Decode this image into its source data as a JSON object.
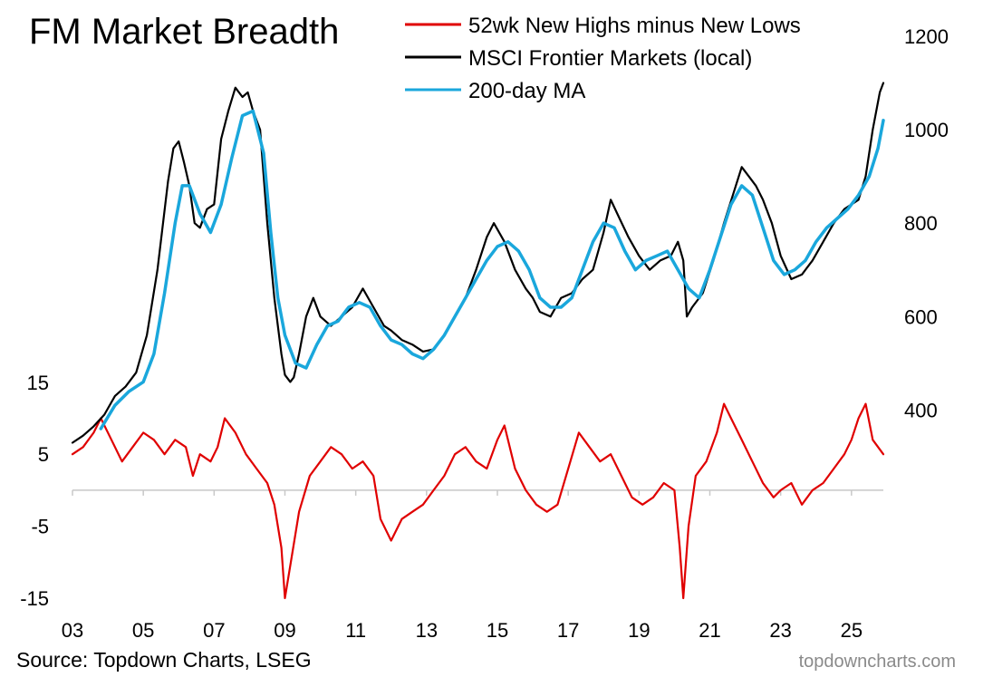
{
  "chart_data": {
    "type": "line",
    "title": "FM Market Breadth",
    "source": "Source: Topdown Charts, LSEG",
    "watermark": "topdowncharts.com",
    "x_tick_labels": [
      "03",
      "05",
      "07",
      "09",
      "11",
      "13",
      "15",
      "17",
      "19",
      "21",
      "23",
      "25"
    ],
    "x_range": [
      2003.0,
      2025.9
    ],
    "right_axis": {
      "ticks": [
        400,
        600,
        800,
        1000,
        1200
      ],
      "tick_labels": [
        "400",
        "600",
        "800",
        "1000",
        "1200"
      ],
      "range": [
        230,
        1200
      ]
    },
    "left_axis": {
      "ticks": [
        15,
        5,
        -5,
        -15
      ],
      "tick_labels": [
        "15",
        "5",
        "-5",
        "-15"
      ],
      "range": [
        -15,
        18
      ],
      "zero_line": 0
    },
    "legend": [
      {
        "label": "52wk New Highs minus New Lows",
        "color": "#e00000"
      },
      {
        "label": "MSCI Frontier Markets (local)",
        "color": "#000000"
      },
      {
        "label": "200-day MA",
        "color": "#1aa7dc"
      }
    ],
    "series": [
      {
        "name": "MSCI Frontier Markets (local)",
        "axis": "right",
        "color": "#000000",
        "x": [
          2003.0,
          2003.3,
          2003.6,
          2003.9,
          2004.2,
          2004.5,
          2004.8,
          2005.1,
          2005.4,
          2005.7,
          2005.85,
          2006.0,
          2006.15,
          2006.3,
          2006.45,
          2006.6,
          2006.8,
          2007.0,
          2007.2,
          2007.4,
          2007.6,
          2007.8,
          2007.95,
          2008.1,
          2008.3,
          2008.5,
          2008.7,
          2008.9,
          2009.0,
          2009.15,
          2009.25,
          2009.4,
          2009.6,
          2009.8,
          2010.0,
          2010.3,
          2010.6,
          2010.9,
          2011.2,
          2011.5,
          2011.8,
          2012.0,
          2012.3,
          2012.6,
          2012.9,
          2013.2,
          2013.5,
          2013.8,
          2014.1,
          2014.4,
          2014.7,
          2014.9,
          2015.2,
          2015.5,
          2015.8,
          2016.0,
          2016.2,
          2016.5,
          2016.8,
          2017.1,
          2017.4,
          2017.7,
          2018.0,
          2018.2,
          2018.45,
          2018.7,
          2019.0,
          2019.3,
          2019.6,
          2019.9,
          2020.1,
          2020.25,
          2020.35,
          2020.5,
          2020.8,
          2021.1,
          2021.4,
          2021.65,
          2021.9,
          2022.1,
          2022.3,
          2022.5,
          2022.75,
          2023.0,
          2023.3,
          2023.6,
          2023.9,
          2024.2,
          2024.5,
          2024.8,
          2025.0,
          2025.2,
          2025.4,
          2025.6,
          2025.8,
          2025.9
        ],
        "values": [
          330,
          345,
          365,
          390,
          430,
          450,
          480,
          560,
          700,
          890,
          960,
          975,
          930,
          880,
          800,
          790,
          830,
          840,
          980,
          1040,
          1090,
          1070,
          1080,
          1040,
          1000,
          800,
          640,
          520,
          475,
          460,
          470,
          520,
          600,
          640,
          600,
          580,
          600,
          620,
          660,
          620,
          580,
          570,
          550,
          540,
          525,
          530,
          560,
          600,
          640,
          700,
          770,
          800,
          760,
          700,
          660,
          640,
          610,
          600,
          640,
          650,
          680,
          700,
          780,
          850,
          810,
          770,
          730,
          700,
          720,
          730,
          760,
          720,
          600,
          620,
          650,
          720,
          800,
          860,
          920,
          900,
          880,
          850,
          800,
          730,
          680,
          690,
          720,
          760,
          800,
          830,
          840,
          850,
          900,
          1000,
          1080,
          1100
        ]
      },
      {
        "name": "200-day MA",
        "axis": "right",
        "color": "#1aa7dc",
        "x": [
          2003.8,
          2004.2,
          2004.6,
          2005.0,
          2005.3,
          2005.6,
          2005.9,
          2006.1,
          2006.3,
          2006.6,
          2006.9,
          2007.2,
          2007.5,
          2007.8,
          2008.1,
          2008.4,
          2008.6,
          2008.8,
          2009.0,
          2009.3,
          2009.6,
          2009.9,
          2010.2,
          2010.5,
          2010.8,
          2011.1,
          2011.4,
          2011.7,
          2012.0,
          2012.3,
          2012.6,
          2012.9,
          2013.2,
          2013.5,
          2013.8,
          2014.1,
          2014.4,
          2014.7,
          2015.0,
          2015.3,
          2015.6,
          2015.9,
          2016.2,
          2016.5,
          2016.8,
          2017.1,
          2017.4,
          2017.7,
          2018.0,
          2018.3,
          2018.6,
          2018.9,
          2019.2,
          2019.5,
          2019.8,
          2020.1,
          2020.4,
          2020.7,
          2021.0,
          2021.3,
          2021.6,
          2021.9,
          2022.2,
          2022.5,
          2022.8,
          2023.1,
          2023.4,
          2023.7,
          2024.0,
          2024.3,
          2024.6,
          2024.9,
          2025.2,
          2025.5,
          2025.75,
          2025.9
        ],
        "values": [
          360,
          410,
          440,
          460,
          520,
          650,
          800,
          880,
          880,
          820,
          780,
          840,
          940,
          1030,
          1040,
          950,
          780,
          640,
          560,
          500,
          490,
          540,
          580,
          590,
          620,
          630,
          620,
          580,
          550,
          540,
          520,
          510,
          530,
          560,
          600,
          640,
          680,
          720,
          750,
          760,
          740,
          700,
          640,
          620,
          620,
          640,
          700,
          760,
          800,
          790,
          740,
          700,
          720,
          730,
          740,
          700,
          660,
          640,
          700,
          770,
          840,
          880,
          860,
          790,
          720,
          690,
          700,
          720,
          760,
          790,
          810,
          830,
          860,
          900,
          960,
          1020
        ]
      },
      {
        "name": "52wk New Highs minus New Lows",
        "axis": "left",
        "color": "#e00000",
        "x": [
          2003.0,
          2003.3,
          2003.6,
          2003.8,
          2004.1,
          2004.4,
          2004.7,
          2005.0,
          2005.3,
          2005.6,
          2005.9,
          2006.2,
          2006.4,
          2006.6,
          2006.9,
          2007.1,
          2007.3,
          2007.6,
          2007.9,
          2008.2,
          2008.5,
          2008.7,
          2008.9,
          2009.0,
          2009.2,
          2009.4,
          2009.7,
          2010.0,
          2010.3,
          2010.6,
          2010.9,
          2011.2,
          2011.5,
          2011.7,
          2012.0,
          2012.3,
          2012.6,
          2012.9,
          2013.2,
          2013.5,
          2013.8,
          2014.1,
          2014.4,
          2014.7,
          2015.0,
          2015.2,
          2015.5,
          2015.8,
          2016.1,
          2016.4,
          2016.7,
          2017.0,
          2017.3,
          2017.6,
          2017.9,
          2018.2,
          2018.5,
          2018.8,
          2019.1,
          2019.4,
          2019.7,
          2020.0,
          2020.15,
          2020.25,
          2020.4,
          2020.6,
          2020.9,
          2021.2,
          2021.4,
          2021.6,
          2021.9,
          2022.2,
          2022.5,
          2022.8,
          2023.0,
          2023.3,
          2023.6,
          2023.9,
          2024.2,
          2024.5,
          2024.8,
          2025.0,
          2025.2,
          2025.4,
          2025.6,
          2025.9
        ],
        "values": [
          5,
          6,
          8,
          10,
          7,
          4,
          6,
          8,
          7,
          5,
          7,
          6,
          2,
          5,
          4,
          6,
          10,
          8,
          5,
          3,
          1,
          -2,
          -8,
          -15,
          -9,
          -3,
          2,
          4,
          6,
          5,
          3,
          4,
          2,
          -4,
          -7,
          -4,
          -3,
          -2,
          0,
          2,
          5,
          6,
          4,
          3,
          7,
          9,
          3,
          0,
          -2,
          -3,
          -2,
          3,
          8,
          6,
          4,
          5,
          2,
          -1,
          -2,
          -1,
          1,
          0,
          -8,
          -15,
          -5,
          2,
          4,
          8,
          12,
          10,
          7,
          4,
          1,
          -1,
          0,
          1,
          -2,
          0,
          1,
          3,
          5,
          7,
          10,
          12,
          7,
          5
        ]
      }
    ]
  }
}
